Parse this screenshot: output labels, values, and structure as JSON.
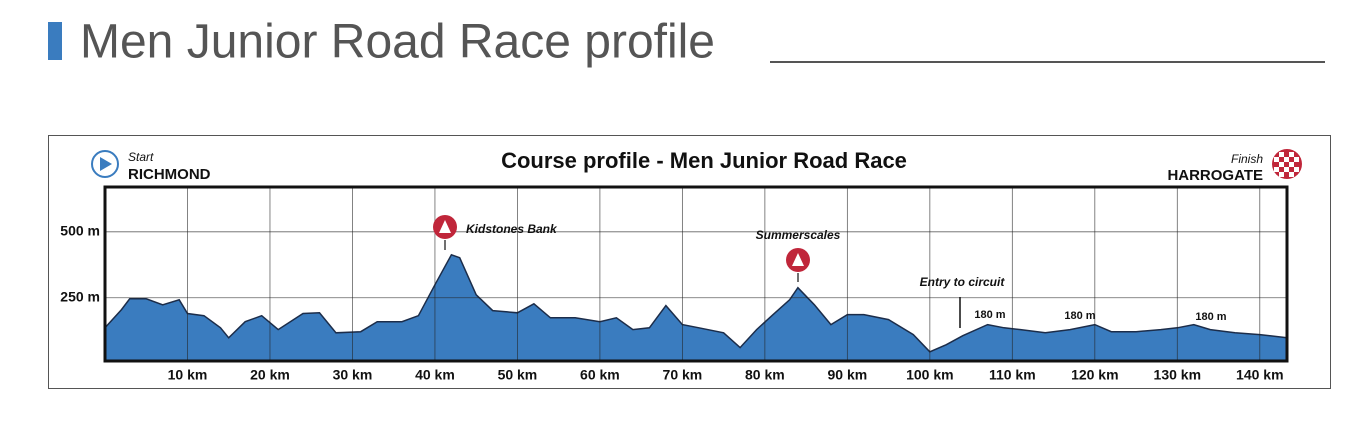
{
  "page_title": "Men Junior Road Race profile",
  "chart_data": {
    "type": "area",
    "title": "Course profile - Men Junior Road Race",
    "start_label": "Start",
    "start_place": "RICHMOND",
    "finish_label": "Finish",
    "finish_place": "HARROGATE",
    "x": [
      0,
      2,
      3,
      5,
      7,
      9,
      10,
      12,
      14,
      15,
      17,
      19,
      21,
      24,
      26,
      28,
      31,
      33,
      36,
      38,
      40,
      42,
      43,
      45,
      47,
      50,
      52,
      54,
      57,
      60,
      62,
      64,
      66,
      68,
      70,
      72,
      75,
      77,
      79,
      81,
      83,
      84,
      86,
      88,
      90,
      92,
      95,
      98,
      100,
      102,
      104,
      107,
      109,
      111,
      114,
      117,
      120,
      122,
      125,
      128,
      130,
      132,
      134,
      137,
      140,
      143.3
    ],
    "values": [
      136,
      205,
      246,
      246,
      223,
      242,
      190,
      182,
      136,
      98,
      159,
      182,
      129,
      190,
      193,
      117,
      121,
      159,
      159,
      182,
      299,
      413,
      402,
      261,
      201,
      193,
      227,
      174,
      174,
      159,
      174,
      129,
      136,
      220,
      148,
      136,
      117,
      61,
      129,
      186,
      242,
      288,
      223,
      148,
      186,
      186,
      167,
      110,
      45,
      72,
      106,
      148,
      136,
      129,
      117,
      129,
      148,
      121,
      121,
      129,
      136,
      148,
      129,
      117,
      110,
      98
    ],
    "color": "#3a7cbf",
    "xlim": [
      0,
      143.3
    ],
    "ylim": [
      10,
      670
    ],
    "xticks": [
      {
        "value": 10,
        "label": "10 km"
      },
      {
        "value": 20,
        "label": "20 km"
      },
      {
        "value": 30,
        "label": "30 km"
      },
      {
        "value": 40,
        "label": "40 km"
      },
      {
        "value": 50,
        "label": "50 km"
      },
      {
        "value": 60,
        "label": "60 km"
      },
      {
        "value": 70,
        "label": "70 km"
      },
      {
        "value": 80,
        "label": "80 km"
      },
      {
        "value": 90,
        "label": "90 km"
      },
      {
        "value": 100,
        "label": "100 km"
      },
      {
        "value": 110,
        "label": "110 km"
      },
      {
        "value": 120,
        "label": "120 km"
      },
      {
        "value": 130,
        "label": "130 km"
      },
      {
        "value": 140,
        "label": "140 km"
      }
    ],
    "yticks": [
      {
        "value": 250,
        "label": "250 m"
      },
      {
        "value": 500,
        "label": "500 m"
      }
    ],
    "grid": true,
    "annotations": [
      "Kidstones Bank",
      "Summerscales",
      "Entry to circuit",
      "180 m",
      "180 m",
      "180 m"
    ]
  }
}
